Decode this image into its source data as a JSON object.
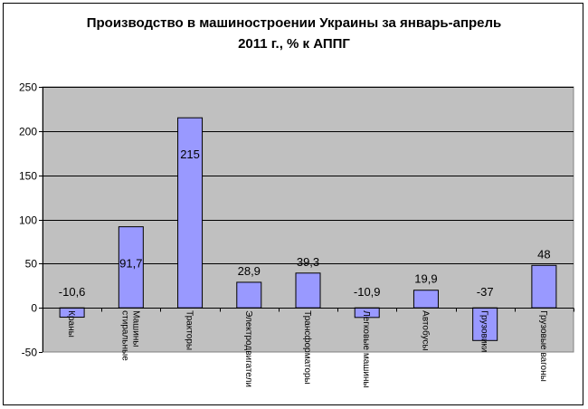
{
  "chart_data": {
    "type": "bar",
    "title_lines": [
      "Производство в машиностроении Украины за январь-апрель",
      "2011 г., % к АППГ"
    ],
    "categories": [
      "Краны",
      "Машины стиральные",
      "Тракторы",
      "Электродвигатели",
      "Трансформаторы",
      "Легковые машины",
      "Автобусы",
      "Грузовики",
      "Грузовые вагоны"
    ],
    "category_lines": [
      [
        "Краны"
      ],
      [
        "Машины",
        "стиральные"
      ],
      [
        "Тракторы"
      ],
      [
        "Электродвигатели"
      ],
      [
        "Трансформаторы"
      ],
      [
        "Легковые машины"
      ],
      [
        "Автобусы"
      ],
      [
        "Грузовики"
      ],
      [
        "Грузовые вагоны"
      ]
    ],
    "values": [
      -10.6,
      91.7,
      215,
      28.9,
      39.3,
      -10.9,
      19.9,
      -37,
      48
    ],
    "data_labels": [
      "-10,6",
      "91,7",
      "215",
      "28,9",
      "39,3",
      "-10,9",
      "19,9",
      "-37",
      "48"
    ],
    "y_ticks": [
      -50,
      0,
      50,
      100,
      150,
      200,
      250
    ],
    "ylim": [
      -50,
      250
    ],
    "grid": true,
    "legend": "none",
    "colors": {
      "plot_background": "#c0c0c0",
      "bar_fill": "#9999ff",
      "bar_stroke": "#000000",
      "grid": "#000000"
    }
  }
}
